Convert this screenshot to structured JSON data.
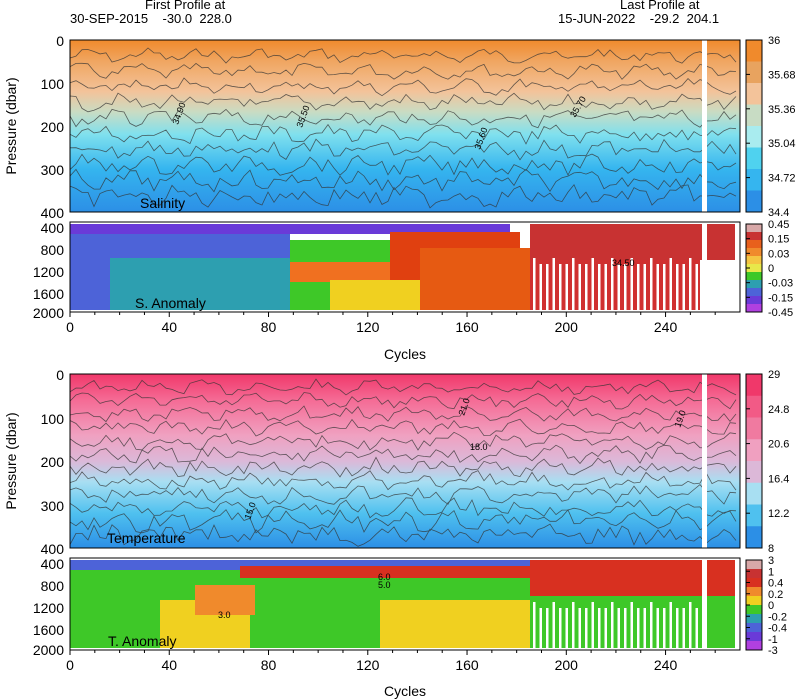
{
  "header": {
    "first_label": "First Profile at",
    "first_info": "30-SEP-2015    -30.0  228.0",
    "last_label": "Last Profile at",
    "last_info": "15-JUN-2022    -29.2  204.1"
  },
  "chart_data": [
    {
      "type": "heatmap",
      "name": "Salinity",
      "ylabel": "Pressure (dbar)",
      "xlim": [
        0,
        270
      ],
      "ylim": [
        0,
        400
      ],
      "yticks": [
        0,
        100,
        200,
        300,
        400
      ],
      "colorbar": [
        "34.4",
        "34.72",
        "35.04",
        "35.36",
        "35.68",
        "36"
      ],
      "colors": [
        "#2c8fe6",
        "#35b5ef",
        "#4fd2ef",
        "#a9ecef",
        "#c8dcc4",
        "#f3c39a",
        "#e8a35f",
        "#f08a2c"
      ],
      "contour_labels": [
        "35.50",
        "35.60",
        "35.70",
        "34.90"
      ]
    },
    {
      "type": "heatmap",
      "name": "S. Anomaly",
      "xlim": [
        0,
        270
      ],
      "ylim": [
        400,
        2000
      ],
      "yticks": [
        400,
        800,
        1200,
        1600,
        2000
      ],
      "colorbar": [
        "0.45",
        "0.15",
        "0.03",
        "0",
        "-0.03",
        "-0.15",
        "-0.45"
      ],
      "xticks": [
        0,
        40,
        80,
        120,
        160,
        200,
        240
      ],
      "xlabel": "Cycles",
      "contour_labels": [
        "34.50"
      ]
    },
    {
      "type": "heatmap",
      "name": "Temperature",
      "ylabel": "Pressure (dbar)",
      "xlim": [
        0,
        270
      ],
      "ylim": [
        0,
        400
      ],
      "yticks": [
        0,
        100,
        200,
        300,
        400
      ],
      "colorbar": [
        "8",
        "12.2",
        "16.4",
        "20.6",
        "24.8",
        "29"
      ],
      "colors": [
        "#2c8fe6",
        "#4fc1ef",
        "#a8dff2",
        "#dcb8d8",
        "#f0a0c0",
        "#f07aa0",
        "#f25a86",
        "#f0386a"
      ],
      "contour_labels": [
        "21.0",
        "19.0",
        "18.0",
        "15.0"
      ]
    },
    {
      "type": "heatmap",
      "name": "T. Anomaly",
      "xlim": [
        0,
        270
      ],
      "ylim": [
        400,
        2000
      ],
      "yticks": [
        400,
        800,
        1200,
        1600,
        2000
      ],
      "colorbar": [
        "3",
        "1",
        "0.4",
        "0.2",
        "0",
        "-0.2",
        "-0.4",
        "-1",
        "-3"
      ],
      "xticks": [
        0,
        40,
        80,
        120,
        160,
        200,
        240
      ],
      "xlabel": "Cycles",
      "contour_labels": [
        "6.0",
        "5.0",
        "3.0"
      ]
    }
  ]
}
